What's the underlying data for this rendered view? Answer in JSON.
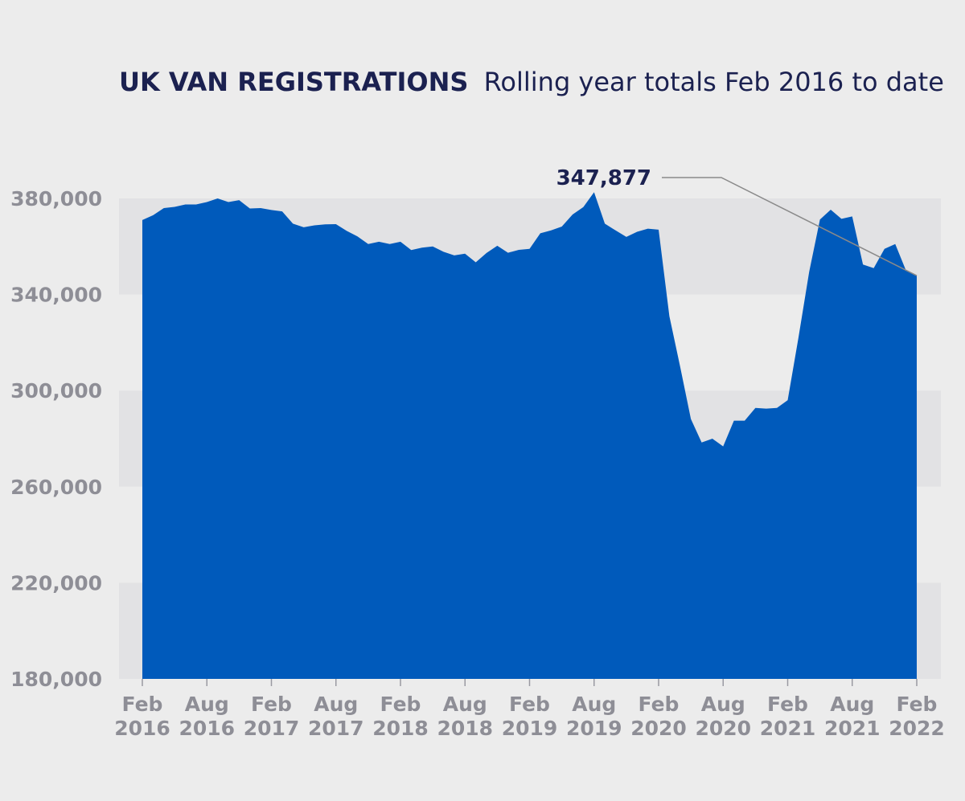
{
  "chart_data": {
    "type": "area",
    "title": "UK VAN REGISTRATIONS",
    "subtitle": "Rolling year totals Feb 2016 to date",
    "xlabel": "",
    "ylabel": "",
    "ylim": [
      180000,
      380000
    ],
    "yticks": [
      380000,
      340000,
      300000,
      260000,
      220000,
      180000
    ],
    "ytick_labels": [
      "380,000",
      "340,000",
      "300,000",
      "260,000",
      "220,000",
      "180,000"
    ],
    "xticks": [
      {
        "month_index": 0,
        "line1": "Feb",
        "line2": "2016"
      },
      {
        "month_index": 6,
        "line1": "Aug",
        "line2": "2016"
      },
      {
        "month_index": 12,
        "line1": "Feb",
        "line2": "2017"
      },
      {
        "month_index": 18,
        "line1": "Aug",
        "line2": "2017"
      },
      {
        "month_index": 24,
        "line1": "Feb",
        "line2": "2018"
      },
      {
        "month_index": 30,
        "line1": "Aug",
        "line2": "2018"
      },
      {
        "month_index": 36,
        "line1": "Feb",
        "line2": "2019"
      },
      {
        "month_index": 42,
        "line1": "Aug",
        "line2": "2019"
      },
      {
        "month_index": 48,
        "line1": "Feb",
        "line2": "2020"
      },
      {
        "month_index": 54,
        "line1": "Aug",
        "line2": "2020"
      },
      {
        "month_index": 60,
        "line1": "Feb",
        "line2": "2021"
      },
      {
        "month_index": 66,
        "line1": "Aug",
        "line2": "2021"
      },
      {
        "month_index": 72,
        "line1": "Feb",
        "line2": "2022"
      }
    ],
    "grid": "alternating horizontal bands",
    "series": [
      {
        "color": "#005abb",
        "values": [
          371000,
          373000,
          376000,
          376500,
          377500,
          377500,
          378500,
          380000,
          378500,
          379300,
          375800,
          376000,
          375200,
          374600,
          369500,
          368000,
          368800,
          369200,
          369300,
          366500,
          364200,
          361000,
          362000,
          361000,
          362000,
          358500,
          359500,
          360000,
          357800,
          356300,
          357000,
          353400,
          357300,
          360300,
          357400,
          358600,
          359000,
          365500,
          366700,
          368300,
          373300,
          376400,
          382600,
          369500,
          366700,
          364000,
          366100,
          367400,
          367000,
          331000,
          310000,
          288200,
          278400,
          280000,
          276800,
          287500,
          287500,
          292800,
          292500,
          292800,
          296000,
          322000,
          349500,
          371200,
          375300,
          371500,
          372500,
          352500,
          351000,
          359000,
          361000,
          350000,
          347877
        ]
      }
    ],
    "annotations": [
      {
        "label": "347,877",
        "points_to_month_index": 72,
        "value": 347877
      }
    ]
  }
}
